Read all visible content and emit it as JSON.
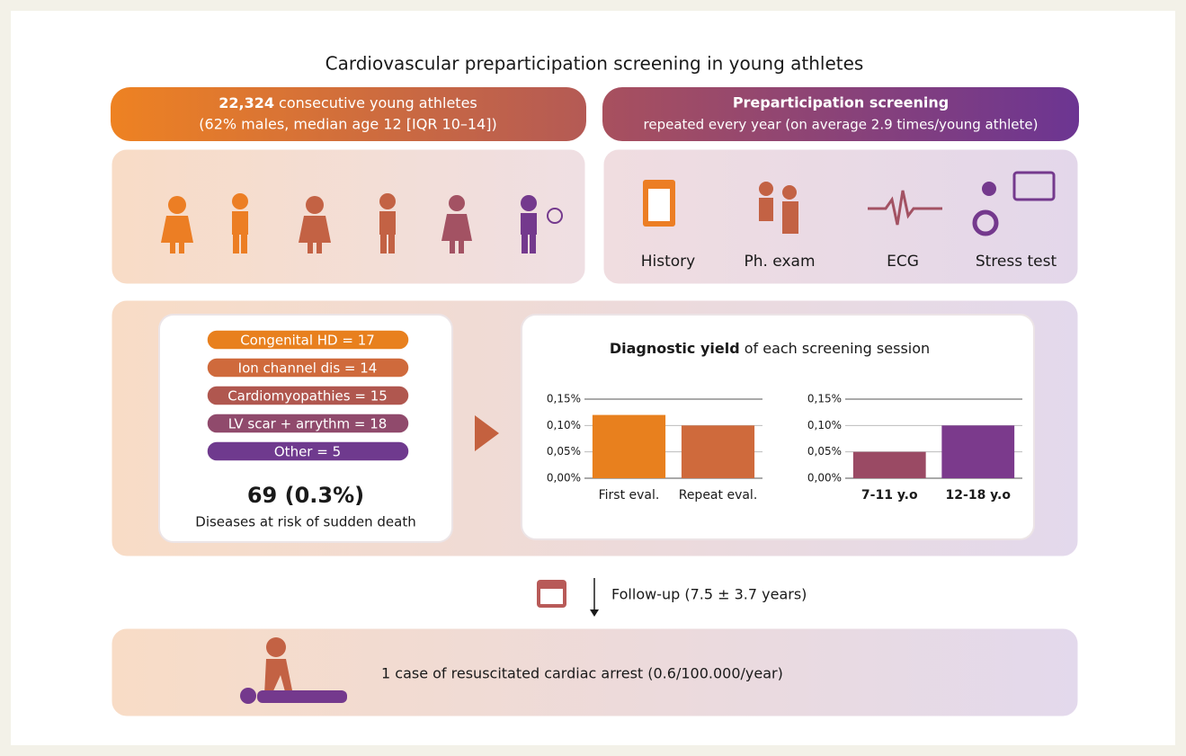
{
  "title": "Cardiovascular preparticipation screening in young athletes",
  "cohort": {
    "count": "22,324",
    "text": " consecutive young athletes",
    "detail": "(62% males, median age 12 [IQR 10–14])"
  },
  "screening": {
    "title": "Preparticipation screening",
    "detail": "repeated every year (on average 2.9 times/young athlete)"
  },
  "steps": [
    "History",
    "Ph. exam",
    "ECG",
    "Stress test"
  ],
  "diseases": [
    {
      "label": "Congenital HD = 17",
      "color": "#e8801e"
    },
    {
      "label": "Ion channel dis = 14",
      "color": "#cf6a3c"
    },
    {
      "label": "Cardiomyopathies = 15",
      "color": "#b0574f"
    },
    {
      "label": "LV scar + arrythm = 18",
      "color": "#904a6c"
    },
    {
      "label": "Other = 5",
      "color": "#6f3a8e"
    }
  ],
  "total": "69 (0.3%)",
  "total_caption": "Diseases at risk of sudden death",
  "yield_title": {
    "bold": "Diagnostic yield",
    "text": " of each screening session"
  },
  "chart_data": [
    {
      "type": "bar",
      "categories": [
        "First eval.",
        "Repeat eval."
      ],
      "values": [
        0.12,
        0.1
      ],
      "colors": [
        "#e8801e",
        "#cf6a3c"
      ],
      "ylim": [
        0,
        0.15
      ],
      "yticks": [
        {
          "value": 0,
          "label": "0,00%"
        },
        {
          "value": 0.05,
          "label": "0,05%"
        },
        {
          "value": 0.1,
          "label": "0,10%"
        },
        {
          "value": 0.15,
          "label": "0,15%"
        }
      ],
      "grid": true
    },
    {
      "type": "bar",
      "categories": [
        "7-11 y.o",
        "12-18 y.o"
      ],
      "values": [
        0.05,
        0.1
      ],
      "colors": [
        "#9a4a64",
        "#7b3a8c"
      ],
      "ylim": [
        0,
        0.15
      ],
      "yticks": [
        {
          "value": 0,
          "label": "0,00%"
        },
        {
          "value": 0.05,
          "label": "0,05%"
        },
        {
          "value": 0.1,
          "label": "0,10%"
        },
        {
          "value": 0.15,
          "label": "0,15%"
        }
      ],
      "grid": true
    }
  ],
  "followup": "Follow-up (7.5 ± 3.7 years)",
  "outcome": "1 case of resuscitated cardiac arrest (0.6/100.000/year)"
}
